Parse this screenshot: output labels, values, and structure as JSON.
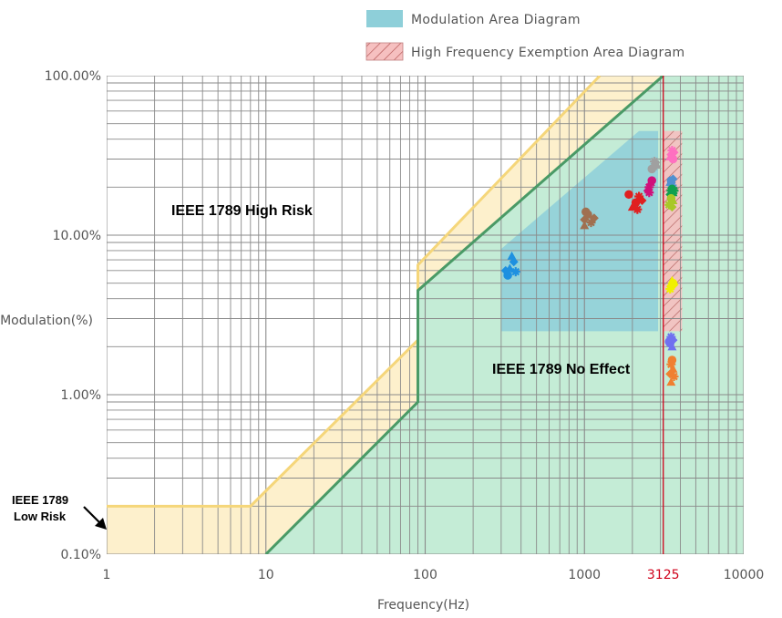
{
  "chart_data": {
    "type": "scatter",
    "x_scale": "log",
    "y_scale": "log",
    "xlim": [
      1,
      10000
    ],
    "ylim": [
      0.1,
      100
    ],
    "xlabel": "Frequency(Hz)",
    "ylabel": "Modulation(%)",
    "x_ticks": [
      {
        "value": 1,
        "label": "1"
      },
      {
        "value": 10,
        "label": "10"
      },
      {
        "value": 100,
        "label": "100"
      },
      {
        "value": 1000,
        "label": "1000"
      },
      {
        "value": 3125,
        "label": "3125",
        "color": "#d0021b"
      },
      {
        "value": 10000,
        "label": "10000"
      }
    ],
    "y_ticks": [
      {
        "value": 0.1,
        "label": "0.10%"
      },
      {
        "value": 1,
        "label": "1.00%"
      },
      {
        "value": 10,
        "label": "10.00%"
      },
      {
        "value": 100,
        "label": "100.00%"
      }
    ],
    "grid": true,
    "legend": {
      "position": "top-right",
      "items": [
        {
          "label": "Modulation Area Diagram",
          "color": "#8ecfd9",
          "pattern": "solid"
        },
        {
          "label": "High Frequency Exemption Area Diagram",
          "color": "#f4b6b6",
          "pattern": "hatch"
        }
      ]
    },
    "regions": [
      {
        "name": "IEEE 1789 High Risk",
        "label": "IEEE 1789 High Risk"
      },
      {
        "name": "IEEE 1789 No Effect",
        "label": "IEEE 1789 No Effect"
      },
      {
        "name": "IEEE 1789 Low Risk",
        "label_lines": [
          "IEEE 1789",
          "Low Risk"
        ]
      }
    ],
    "boundaries": {
      "low_risk_line": {
        "color": "#f5d67a",
        "points": [
          [
            1,
            0.2
          ],
          [
            8,
            0.2
          ],
          [
            90,
            2.2
          ],
          [
            90,
            6.5
          ],
          [
            1250,
            100
          ]
        ]
      },
      "no_effect_line": {
        "color": "#4a9a66",
        "points": [
          [
            10,
            0.1
          ],
          [
            90,
            0.9
          ],
          [
            90,
            4.5
          ],
          [
            3125,
            100
          ]
        ]
      }
    },
    "high_frequency_limit": {
      "x": 3125,
      "color": "#d0021b"
    },
    "modulation_area": {
      "color": "#8ecfd9",
      "x_range": [
        300,
        2900
      ],
      "y_range": [
        2.5,
        45
      ]
    },
    "exemption_area": {
      "x_range": [
        3125,
        4100
      ],
      "y_range": [
        2.5,
        45
      ]
    },
    "series": [
      {
        "color": "#1e90e0",
        "points": [
          [
            340,
            6.2
          ],
          [
            360,
            6.8
          ],
          [
            330,
            5.6
          ],
          [
            370,
            5.9
          ],
          [
            350,
            7.4
          ],
          [
            320,
            6.0
          ]
        ]
      },
      {
        "color": "#a07050",
        "points": [
          [
            1000,
            12.5
          ],
          [
            1050,
            13.5
          ],
          [
            1100,
            12.0
          ],
          [
            1000,
            11.5
          ],
          [
            1150,
            12.8
          ],
          [
            1020,
            14.0
          ]
        ]
      },
      {
        "color": "#e02020",
        "points": [
          [
            2100,
            16.0
          ],
          [
            2200,
            17.5
          ],
          [
            2000,
            15.0
          ],
          [
            2300,
            16.5
          ],
          [
            1900,
            18.0
          ],
          [
            2150,
            14.5
          ]
        ]
      },
      {
        "color": "#d0107a",
        "points": [
          [
            2550,
            20.0
          ],
          [
            2600,
            21.5
          ],
          [
            2500,
            19.0
          ],
          [
            2650,
            22.0
          ],
          [
            2550,
            18.5
          ]
        ]
      },
      {
        "color": "#a0a0a0",
        "points": [
          [
            2700,
            27.0
          ],
          [
            2800,
            28.5
          ],
          [
            2650,
            26.0
          ],
          [
            2750,
            29.0
          ],
          [
            2850,
            27.5
          ]
        ]
      },
      {
        "color": "#ff70c0",
        "points": [
          [
            3500,
            32.0
          ],
          [
            3600,
            30.0
          ],
          [
            3550,
            34.0
          ],
          [
            3450,
            31.0
          ],
          [
            3650,
            33.0
          ]
        ]
      },
      {
        "color": "#5090d0",
        "points": [
          [
            3500,
            22.0
          ],
          [
            3550,
            20.5
          ],
          [
            3450,
            21.5
          ],
          [
            3600,
            22.5
          ]
        ]
      },
      {
        "color": "#10a050",
        "points": [
          [
            3500,
            19.0
          ],
          [
            3600,
            18.5
          ],
          [
            3450,
            18.0
          ],
          [
            3550,
            19.5
          ],
          [
            3650,
            19.0
          ]
        ]
      },
      {
        "color": "#a8c828",
        "points": [
          [
            3450,
            16.0
          ],
          [
            3550,
            15.0
          ],
          [
            3500,
            17.0
          ],
          [
            3400,
            15.5
          ],
          [
            3600,
            16.5
          ]
        ]
      },
      {
        "color": "#f0f000",
        "points": [
          [
            3500,
            4.8
          ],
          [
            3600,
            5.0
          ],
          [
            3450,
            4.6
          ],
          [
            3550,
            5.2
          ],
          [
            3650,
            4.9
          ]
        ]
      },
      {
        "color": "#7070f0",
        "points": [
          [
            3450,
            2.1
          ],
          [
            3500,
            2.3
          ],
          [
            3550,
            2.0
          ],
          [
            3600,
            2.2
          ],
          [
            3400,
            2.15
          ]
        ]
      },
      {
        "color": "#f08030",
        "points": [
          [
            3500,
            1.55
          ],
          [
            3600,
            1.45
          ],
          [
            3450,
            1.35
          ],
          [
            3550,
            1.65
          ],
          [
            3650,
            1.3
          ],
          [
            3500,
            1.2
          ]
        ]
      }
    ]
  }
}
